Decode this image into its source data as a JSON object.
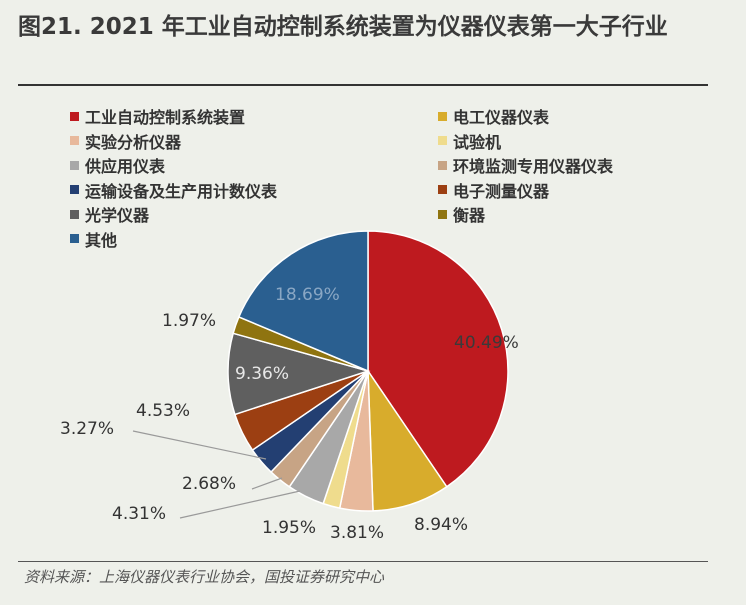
{
  "title": "图21. 2021 年工业自动控制系统装置为仪器仪表第一大子行业",
  "source": "资料来源：上海仪器仪表行业协会，国投证券研究中心",
  "chart_data": {
    "type": "pie",
    "legend_position": "top",
    "slices": [
      {
        "name": "工业自动控制系统装置",
        "value": 40.49,
        "label": "40.49%",
        "color": "#be1a1f"
      },
      {
        "name": "电工仪器仪表",
        "value": 8.94,
        "label": "8.94%",
        "color": "#d8ac2c"
      },
      {
        "name": "实验分析仪器",
        "value": 3.81,
        "label": "3.81%",
        "color": "#e8b99c"
      },
      {
        "name": "试验机",
        "value": 1.95,
        "label": "1.95%",
        "color": "#efdc8d"
      },
      {
        "name": "供应用仪表",
        "value": 4.31,
        "label": "4.31%",
        "color": "#a8a8a8"
      },
      {
        "name": "环境监测专用仪器仪表",
        "value": 2.68,
        "label": "2.68%",
        "color": "#c7a485"
      },
      {
        "name": "运输设备及生产用计数仪表",
        "value": 3.27,
        "label": "3.27%",
        "color": "#233f72"
      },
      {
        "name": "电子测量仪器",
        "value": 4.53,
        "label": "4.53%",
        "color": "#9c3f12"
      },
      {
        "name": "光学仪器",
        "value": 9.36,
        "label": "9.36%",
        "color": "#5f5f5f"
      },
      {
        "name": "衡器",
        "value": 1.97,
        "label": "1.97%",
        "color": "#8f7410"
      },
      {
        "name": "其他",
        "value": 18.69,
        "label": "18.69%",
        "color": "#2a5f90"
      }
    ]
  }
}
